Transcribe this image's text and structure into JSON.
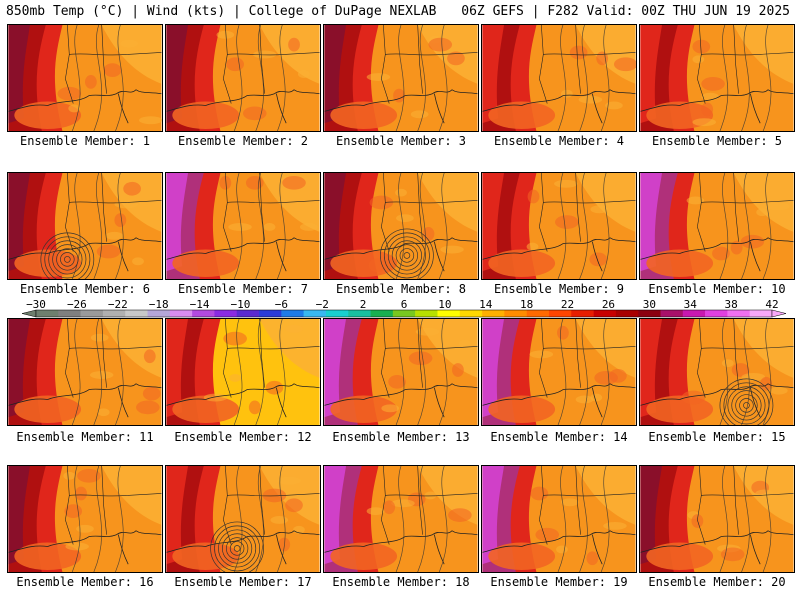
{
  "header": {
    "left": "850mb Temp (°C) | Wind (kts) | College of DuPage NEXLAB",
    "right": "06Z GEFS | F282 Valid: 00Z THU JUN 19 2025"
  },
  "members": [
    {
      "label": "Ensemble Member: 1",
      "style": "hot",
      "low": false
    },
    {
      "label": "Ensemble Member: 2",
      "style": "hot",
      "low": false
    },
    {
      "label": "Ensemble Member: 3",
      "style": "hot",
      "low": false
    },
    {
      "label": "Ensemble Member: 4",
      "style": "warm",
      "low": false
    },
    {
      "label": "Ensemble Member: 5",
      "style": "warm",
      "low": false
    },
    {
      "label": "Ensemble Member: 6",
      "style": "hot",
      "low": true
    },
    {
      "label": "Ensemble Member: 7",
      "style": "purple",
      "low": false
    },
    {
      "label": "Ensemble Member: 8",
      "style": "hot",
      "low": true
    },
    {
      "label": "Ensemble Member: 9",
      "style": "warm",
      "low": false
    },
    {
      "label": "Ensemble Member: 10",
      "style": "purple",
      "low": false
    },
    {
      "label": "Ensemble Member: 11",
      "style": "hot",
      "low": false
    },
    {
      "label": "Ensemble Member: 12",
      "style": "cool",
      "low": false
    },
    {
      "label": "Ensemble Member: 13",
      "style": "purple",
      "low": false
    },
    {
      "label": "Ensemble Member: 14",
      "style": "purple",
      "low": false
    },
    {
      "label": "Ensemble Member: 15",
      "style": "warm",
      "low": true
    },
    {
      "label": "Ensemble Member: 16",
      "style": "hot",
      "low": false
    },
    {
      "label": "Ensemble Member: 17",
      "style": "warm",
      "low": true
    },
    {
      "label": "Ensemble Member: 18",
      "style": "purple",
      "low": false
    },
    {
      "label": "Ensemble Member: 19",
      "style": "purple",
      "low": false
    },
    {
      "label": "Ensemble Member: 20",
      "style": "hot",
      "low": false
    }
  ],
  "colorbar": {
    "ticks": [
      "−30",
      "−26",
      "−22",
      "−18",
      "−14",
      "−10",
      "−6",
      "−2",
      "2",
      "6",
      "10",
      "14",
      "18",
      "22",
      "26",
      "30",
      "34",
      "38",
      "42"
    ],
    "colors": [
      "#6e7f6e",
      "#7f7f7f",
      "#9a9a9a",
      "#b0b0b0",
      "#c8c8c8",
      "#b5a6d8",
      "#d98cf0",
      "#b24ae0",
      "#8a2be2",
      "#5a2ad0",
      "#2a3bd8",
      "#1e7be8",
      "#38b8f0",
      "#18d0d0",
      "#18c0a0",
      "#18b050",
      "#78c820",
      "#b8e000",
      "#ffff00",
      "#ffd800",
      "#ffb000",
      "#ff8c00",
      "#ff6a00",
      "#ff4500",
      "#e81e00",
      "#c80000",
      "#a80000",
      "#8b0010",
      "#a8106a",
      "#c818b0",
      "#e040e0",
      "#f070f0",
      "#f8a8f8"
    ]
  },
  "palette": {
    "orange": "#f7941d",
    "light_orange": "#fbb034",
    "dark_orange": "#f26522",
    "red": "#e0261b",
    "dark_red": "#b01010",
    "maroon": "#8a0f2a",
    "purple": "#b0307a",
    "magenta": "#d040c8",
    "yellow": "#ffc20e"
  }
}
